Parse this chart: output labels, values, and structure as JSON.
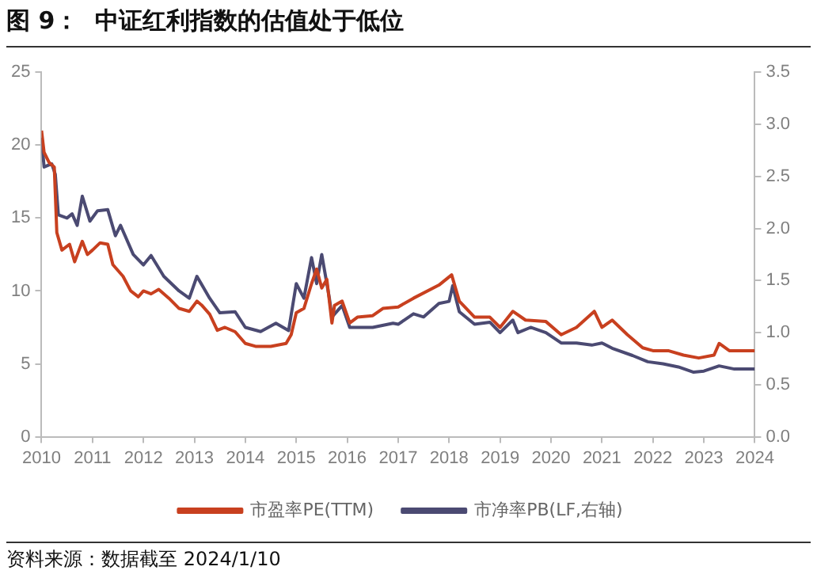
{
  "chart_data": {
    "type": "line",
    "title": "图 9：  中证红利指数的估值处于低位",
    "annotations": [
      "资料来源：数据截至 2024/1/10"
    ],
    "xlim": [
      2010,
      2024
    ],
    "xticks": [
      2010,
      2011,
      2012,
      2013,
      2014,
      2015,
      2016,
      2017,
      2018,
      2019,
      2020,
      2021,
      2022,
      2023,
      2024
    ],
    "ylim": [
      0,
      25
    ],
    "yticks": [
      0,
      5,
      10,
      15,
      20,
      25
    ],
    "y2lim": [
      0,
      3.5
    ],
    "y2ticks": [
      {
        "value": 0,
        "label": "0.0"
      },
      {
        "value": 0.5,
        "label": "0.5"
      },
      {
        "value": 1,
        "label": "1.0"
      },
      {
        "value": 1.5,
        "label": "1.5"
      },
      {
        "value": 2,
        "label": "2.0"
      },
      {
        "value": 2.5,
        "label": "2.5"
      },
      {
        "value": 3,
        "label": "3.0"
      },
      {
        "value": 3.5,
        "label": "3.5"
      }
    ],
    "grid": false,
    "legend": "bottom",
    "marker": "none",
    "series": [
      {
        "name": "市盈率PE(TTM)",
        "color": "#c8401f",
        "x": [
          2010.0,
          2010.05,
          2010.15,
          2010.25,
          2010.3,
          2010.4,
          2010.55,
          2010.65,
          2010.8,
          2010.9,
          2011.0,
          2011.15,
          2011.3,
          2011.4,
          2011.6,
          2011.75,
          2011.9,
          2012.0,
          2012.15,
          2012.3,
          2012.5,
          2012.7,
          2012.9,
          2013.05,
          2013.15,
          2013.3,
          2013.45,
          2013.6,
          2013.8,
          2014.0,
          2014.2,
          2014.5,
          2014.8,
          2014.9,
          2015.0,
          2015.15,
          2015.3,
          2015.4,
          2015.5,
          2015.6,
          2015.7,
          2015.75,
          2015.9,
          2016.05,
          2016.2,
          2016.5,
          2016.7,
          2017.0,
          2017.3,
          2017.8,
          2018.05,
          2018.2,
          2018.5,
          2018.8,
          2019.0,
          2019.25,
          2019.5,
          2019.9,
          2020.2,
          2020.5,
          2020.85,
          2021.0,
          2021.2,
          2021.5,
          2021.8,
          2022.0,
          2022.3,
          2022.6,
          2022.9,
          2023.2,
          2023.3,
          2023.5,
          2023.8,
          2024.0
        ],
        "values": [
          21,
          19.5,
          18.8,
          18.5,
          14,
          12.8,
          13.2,
          12.0,
          13.4,
          12.5,
          12.8,
          13.3,
          13.2,
          11.8,
          11,
          10,
          9.6,
          10,
          9.8,
          10.1,
          9.5,
          8.8,
          8.6,
          9.3,
          9.0,
          8.4,
          7.3,
          7.5,
          7.2,
          6.4,
          6.2,
          6.2,
          6.4,
          7.0,
          8.5,
          8.8,
          10.5,
          11.5,
          10.2,
          10.8,
          7.8,
          9.0,
          9.3,
          7.8,
          8.2,
          8.3,
          8.8,
          8.9,
          9.5,
          10.4,
          11.1,
          9.3,
          8.2,
          8.2,
          7.5,
          8.6,
          8.0,
          7.9,
          7.0,
          7.5,
          8.6,
          7.5,
          8.0,
          7.0,
          6.1,
          5.9,
          5.9,
          5.6,
          5.4,
          5.6,
          6.4,
          5.9,
          5.9,
          5.9
        ]
      },
      {
        "name": "市净率PB(LF,右轴)",
        "color": "#4b4a72",
        "axis": "y2",
        "x": [
          2010.0,
          2010.05,
          2010.2,
          2010.27,
          2010.33,
          2010.5,
          2010.6,
          2010.7,
          2010.8,
          2010.95,
          2011.1,
          2011.3,
          2011.45,
          2011.55,
          2011.8,
          2012.0,
          2012.15,
          2012.4,
          2012.7,
          2012.9,
          2013.05,
          2013.3,
          2013.5,
          2013.8,
          2014.0,
          2014.3,
          2014.6,
          2014.85,
          2015.0,
          2015.15,
          2015.3,
          2015.4,
          2015.5,
          2015.65,
          2015.7,
          2015.9,
          2016.05,
          2016.3,
          2016.5,
          2016.9,
          2017.0,
          2017.3,
          2017.5,
          2017.8,
          2018.0,
          2018.07,
          2018.2,
          2018.5,
          2018.8,
          2019.0,
          2019.25,
          2019.35,
          2019.6,
          2019.9,
          2020.2,
          2020.5,
          2020.8,
          2021.0,
          2021.2,
          2021.6,
          2021.9,
          2022.2,
          2022.5,
          2022.8,
          2023.0,
          2023.3,
          2023.6,
          2024.0
        ],
        "values": [
          2.87,
          2.59,
          2.62,
          2.52,
          2.13,
          2.1,
          2.14,
          2.03,
          2.31,
          2.07,
          2.17,
          2.18,
          1.93,
          2.03,
          1.75,
          1.65,
          1.74,
          1.54,
          1.4,
          1.33,
          1.54,
          1.33,
          1.19,
          1.2,
          1.05,
          1.01,
          1.09,
          1.02,
          1.47,
          1.33,
          1.72,
          1.47,
          1.75,
          1.33,
          1.15,
          1.26,
          1.05,
          1.05,
          1.05,
          1.09,
          1.08,
          1.18,
          1.15,
          1.28,
          1.3,
          1.45,
          1.2,
          1.08,
          1.1,
          1.0,
          1.12,
          1.0,
          1.05,
          1.0,
          0.9,
          0.9,
          0.88,
          0.9,
          0.85,
          0.78,
          0.72,
          0.7,
          0.67,
          0.62,
          0.63,
          0.68,
          0.65,
          0.65
        ]
      }
    ]
  }
}
